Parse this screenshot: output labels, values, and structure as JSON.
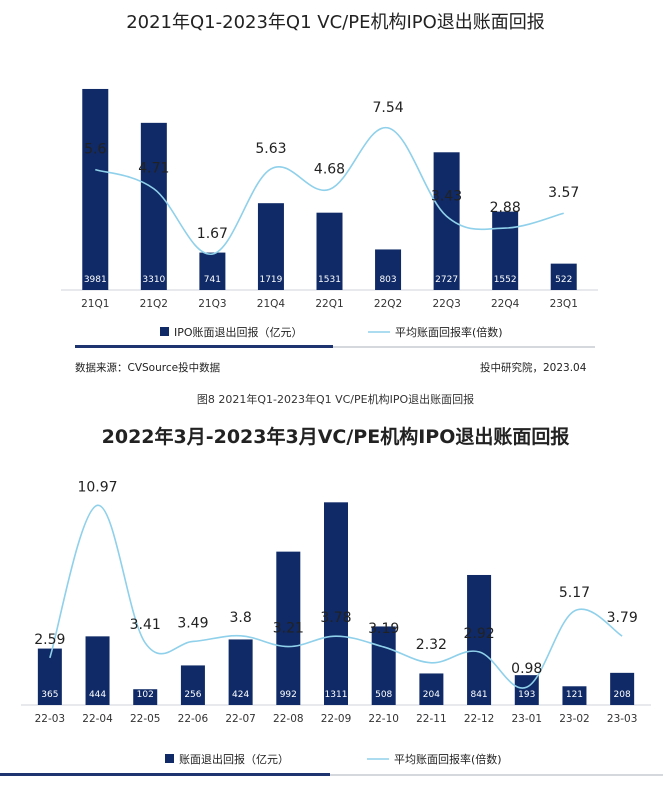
{
  "caption": "图8 2021年Q1-2023年Q1 VC/PE机构IPO退出账面回报",
  "chart_data": [
    {
      "type": "bar",
      "title": "2021年Q1-2023年Q1  VC/PE机构IPO退出账面回报",
      "categories": [
        "21Q1",
        "21Q2",
        "21Q3",
        "21Q4",
        "22Q1",
        "22Q2",
        "22Q3",
        "22Q4",
        "23Q1"
      ],
      "series": [
        {
          "name": "IPO账面退出回报（亿元）",
          "type": "bar",
          "values": [
            3981,
            3310,
            741,
            1719,
            1531,
            803,
            2727,
            1552,
            522
          ]
        },
        {
          "name": "平均账面回报率(倍数)",
          "type": "line",
          "values": [
            5.6,
            4.71,
            1.67,
            5.63,
            4.68,
            7.54,
            3.43,
            2.88,
            3.57
          ]
        }
      ],
      "source_left": "数据来源：CVSource投中数据",
      "source_right": "投中研究院，2023.04",
      "colors": {
        "bar": "#0f2a66",
        "line": "#8fd0ea",
        "rule": "#1e3470"
      }
    },
    {
      "type": "bar",
      "title": "2022年3月-2023年3月VC/PE机构IPO退出账面回报",
      "categories": [
        "22-03",
        "22-04",
        "22-05",
        "22-06",
        "22-07",
        "22-08",
        "22-09",
        "22-10",
        "22-11",
        "22-12",
        "23-01",
        "23-02",
        "23-03"
      ],
      "series": [
        {
          "name": "账面退出回报（亿元）",
          "type": "bar",
          "values": [
            365,
            444,
            102,
            256,
            424,
            992,
            1311,
            508,
            204,
            841,
            193,
            121,
            208
          ]
        },
        {
          "name": "平均账面回报率(倍数)",
          "type": "line",
          "values": [
            2.59,
            10.97,
            3.41,
            3.49,
            3.8,
            3.21,
            3.78,
            3.19,
            2.32,
            2.92,
            0.98,
            5.17,
            3.79
          ]
        }
      ],
      "colors": {
        "bar": "#0f2a66",
        "line": "#8fd0ea",
        "rule": "#1e3470"
      }
    }
  ]
}
